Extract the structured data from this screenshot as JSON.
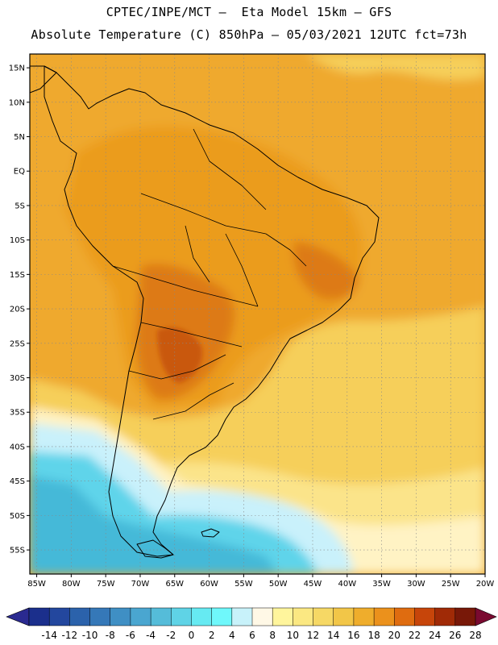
{
  "header": {
    "line1": "CPTEC/INPE/MCT –  Eta Model 15km – GFS",
    "line2": "Absolute Temperature (C) 850hPa – 05/03/2021 12UTC fct=73h"
  },
  "map": {
    "lat_labels": [
      "15N",
      "10N",
      "5N",
      "EQ",
      "5S",
      "10S",
      "15S",
      "20S",
      "25S",
      "30S",
      "35S",
      "40S",
      "45S",
      "50S",
      "55S"
    ],
    "lon_labels": [
      "85W",
      "80W",
      "75W",
      "70W",
      "65W",
      "60W",
      "55W",
      "50W",
      "45W",
      "40W",
      "35W",
      "30W",
      "25W",
      "20W"
    ]
  },
  "colorbar": {
    "labels": [
      "-14",
      "-12",
      "-10",
      "-8",
      "-6",
      "-4",
      "-2",
      "0",
      "2",
      "4",
      "6",
      "8",
      "10",
      "12",
      "14",
      "16",
      "18",
      "20",
      "22",
      "24",
      "26",
      "28"
    ],
    "colors": [
      "#1b2f8c",
      "#23479e",
      "#2b62ab",
      "#3578b8",
      "#3f8fc4",
      "#4aa6d0",
      "#55bcd9",
      "#5fd3e6",
      "#66eaf2",
      "#6ff8fb",
      "#c8f2fa",
      "#fff8e6",
      "#fff59c",
      "#fbe882",
      "#f6d865",
      "#f2c648",
      "#efad2c",
      "#eb911c",
      "#df6c10",
      "#c7450a",
      "#a02a06",
      "#781808"
    ],
    "low_color": "#2a2a90",
    "high_color": "#7a0a30"
  },
  "legend_colors": {
    "ocean_hot": "#efa92e",
    "land_hot": "#eb9c1e",
    "hot_spot": "#dd7a14",
    "very_hot": "#c9580e",
    "warm": "#f6cf5a",
    "mild": "#fbe48a",
    "pale": "#fff3c4",
    "cool": "#c9f1fb",
    "cold": "#5fd4ea",
    "colder": "#45b9d8"
  }
}
